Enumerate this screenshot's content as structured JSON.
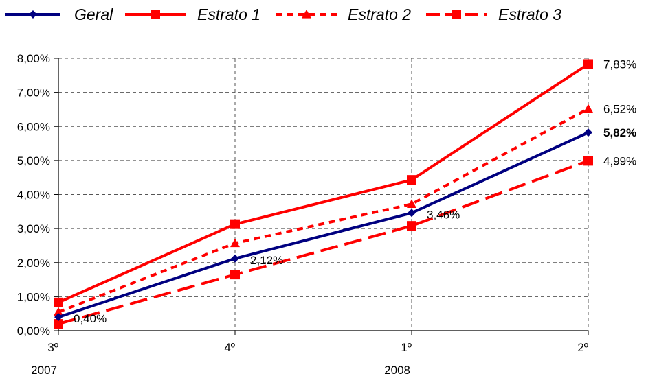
{
  "chart_data": {
    "type": "line",
    "categories": [
      "3º",
      "4º",
      "1º",
      "2º"
    ],
    "year_labels": [
      "2007",
      "",
      "2008",
      ""
    ],
    "ylim": [
      0,
      8
    ],
    "yticks": [
      0,
      1,
      2,
      3,
      4,
      5,
      6,
      7,
      8
    ],
    "ytick_labels": [
      "0,00%",
      "1,00%",
      "2,00%",
      "3,00%",
      "4,00%",
      "5,00%",
      "6,00%",
      "7,00%",
      "8,00%"
    ],
    "grid": true,
    "legend_position": "top",
    "series": [
      {
        "name": "Geral",
        "values": [
          0.4,
          2.12,
          3.46,
          5.82
        ],
        "color": "#000080",
        "marker": "diamond",
        "dash": "solid",
        "labels": [
          "0,40%",
          "2,12%",
          "3,46%",
          "5,82%"
        ]
      },
      {
        "name": "Estrato 1",
        "values": [
          0.83,
          3.13,
          4.43,
          7.83
        ],
        "color": "#ff0000",
        "marker": "square",
        "dash": "solid",
        "labels": [
          "",
          "",
          "",
          "7,83%"
        ]
      },
      {
        "name": "Estrato 2",
        "values": [
          0.55,
          2.57,
          3.72,
          6.52
        ],
        "color": "#ff0000",
        "marker": "triangle",
        "dash": "dotted",
        "labels": [
          "",
          "",
          "",
          "6,52%"
        ]
      },
      {
        "name": "Estrato 3",
        "values": [
          0.2,
          1.65,
          3.08,
          4.99
        ],
        "color": "#ff0000",
        "marker": "square",
        "dash": "dashed",
        "labels": [
          "",
          "",
          "",
          "4,99%"
        ]
      }
    ]
  }
}
